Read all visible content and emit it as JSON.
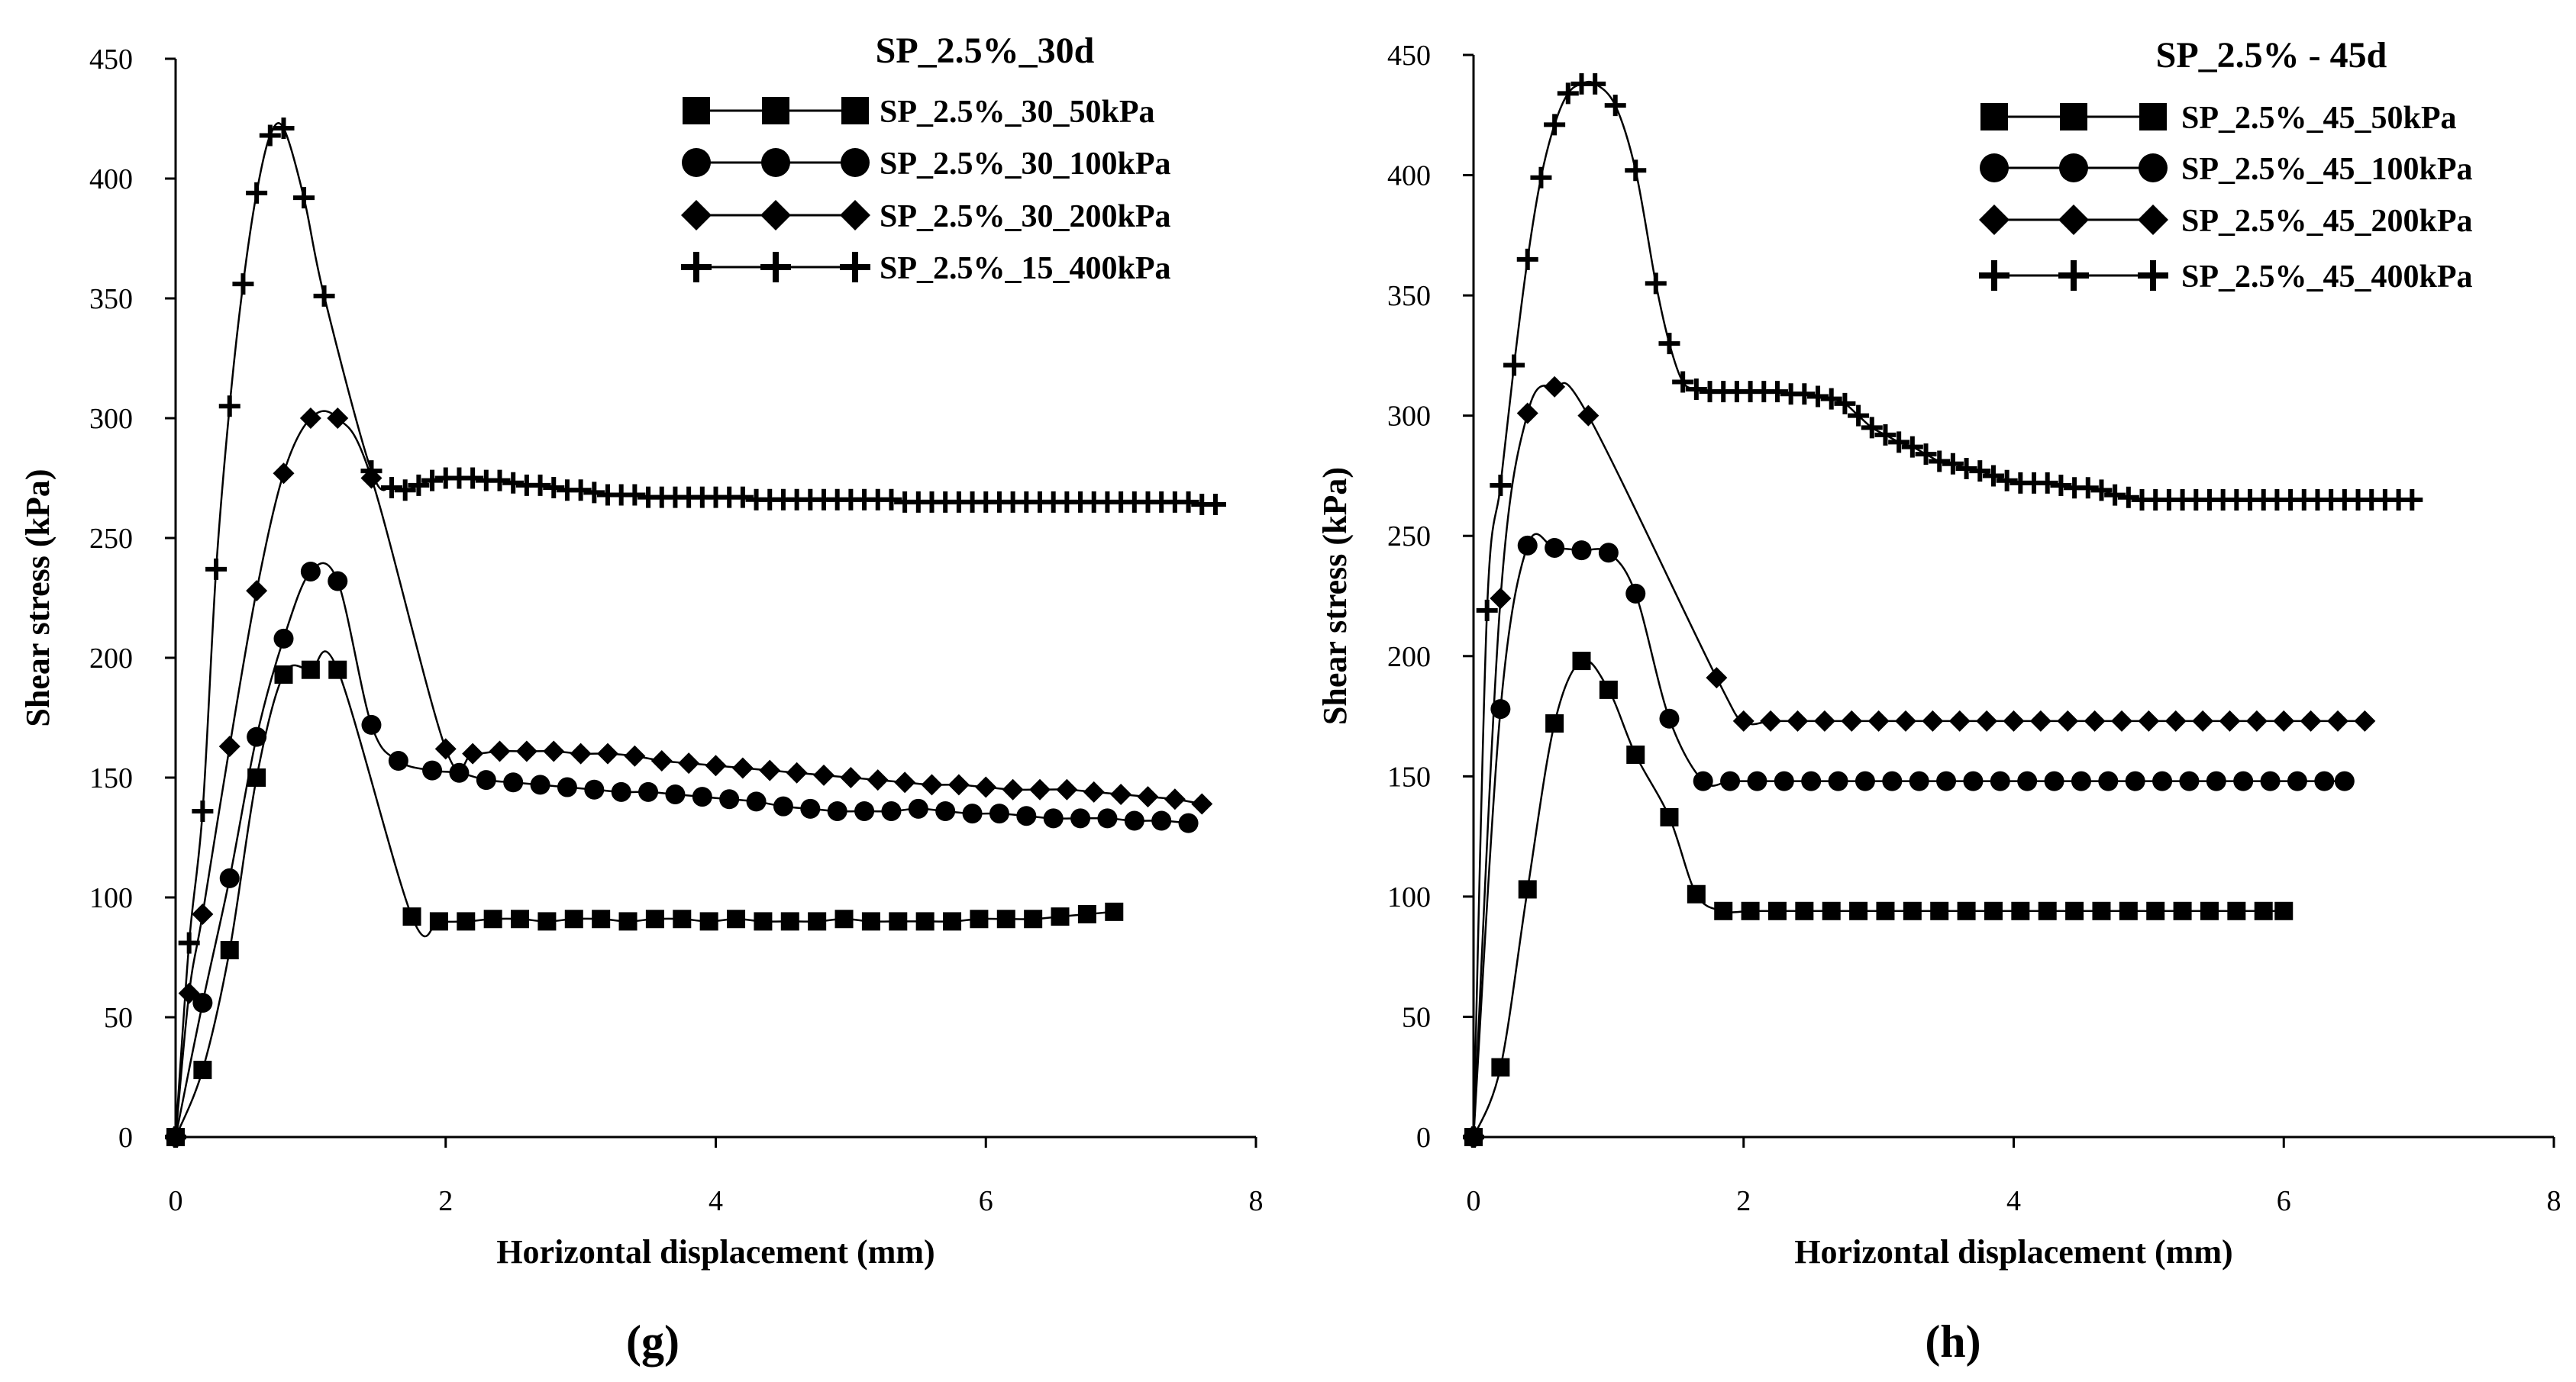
{
  "chart_data": [
    {
      "type": "line",
      "panel_label": "(g)",
      "title": "SP_2.5%_30d",
      "xlabel": "Horizontal displacement (mm)",
      "ylabel": "Shear stress (kPa)",
      "xlim": [
        0,
        8
      ],
      "ylim": [
        0,
        450
      ],
      "xticks": [
        0,
        2,
        4,
        6,
        8
      ],
      "yticks": [
        0,
        50,
        100,
        150,
        200,
        250,
        300,
        350,
        400,
        450
      ],
      "grid": false,
      "legend_position": "top-right",
      "series": [
        {
          "name": "SP_2.5%_30_50kPa",
          "marker": "square",
          "x": [
            0,
            0.2,
            0.4,
            0.6,
            0.8,
            1.0,
            1.2,
            1.75,
            1.95,
            2.15,
            2.35,
            2.55,
            2.75,
            2.95,
            3.15,
            3.35,
            3.55,
            3.75,
            3.95,
            4.15,
            4.35,
            4.55,
            4.75,
            4.95,
            5.15,
            5.35,
            5.55,
            5.75,
            5.95,
            6.15,
            6.35,
            6.55,
            6.75,
            6.95
          ],
          "y": [
            0,
            28,
            78,
            150,
            193,
            195,
            195,
            92,
            90,
            90,
            91,
            91,
            90,
            91,
            91,
            90,
            91,
            91,
            90,
            91,
            90,
            90,
            90,
            91,
            90,
            90,
            90,
            90,
            91,
            91,
            91,
            92,
            93,
            94
          ]
        },
        {
          "name": "SP_2.5%_30_100kPa",
          "marker": "circle",
          "x": [
            0,
            0.2,
            0.4,
            0.6,
            0.8,
            1.0,
            1.2,
            1.45,
            1.65,
            1.9,
            2.1,
            2.3,
            2.5,
            2.7,
            2.9,
            3.1,
            3.3,
            3.5,
            3.7,
            3.9,
            4.1,
            4.3,
            4.5,
            4.7,
            4.9,
            5.1,
            5.3,
            5.5,
            5.7,
            5.9,
            6.1,
            6.3,
            6.5,
            6.7,
            6.9,
            7.1,
            7.3,
            7.5
          ],
          "y": [
            0,
            56,
            108,
            167,
            208,
            236,
            232,
            172,
            157,
            153,
            152,
            149,
            148,
            147,
            146,
            145,
            144,
            144,
            143,
            142,
            141,
            140,
            138,
            137,
            136,
            136,
            136,
            137,
            136,
            135,
            135,
            134,
            133,
            133,
            133,
            132,
            132,
            131
          ]
        },
        {
          "name": "SP_2.5%_30_200kPa",
          "marker": "diamond",
          "x": [
            0,
            0.1,
            0.2,
            0.4,
            0.6,
            0.8,
            1.0,
            1.2,
            1.45,
            2.0,
            2.2,
            2.4,
            2.6,
            2.8,
            3.0,
            3.2,
            3.4,
            3.6,
            3.8,
            4.0,
            4.2,
            4.4,
            4.6,
            4.8,
            5.0,
            5.2,
            5.4,
            5.6,
            5.8,
            6.0,
            6.2,
            6.4,
            6.6,
            6.8,
            7.0,
            7.2,
            7.4,
            7.6
          ],
          "y": [
            0,
            60,
            93,
            163,
            228,
            277,
            300,
            300,
            275,
            162,
            160,
            161,
            161,
            161,
            160,
            160,
            159,
            157,
            156,
            155,
            154,
            153,
            152,
            151,
            150,
            149,
            148,
            147,
            147,
            146,
            145,
            145,
            145,
            144,
            143,
            142,
            141,
            139
          ]
        },
        {
          "name": "SP_2.5%_15_400kPa",
          "marker": "plus",
          "x": [
            0,
            0.1,
            0.2,
            0.3,
            0.4,
            0.5,
            0.6,
            0.7,
            0.8,
            0.95,
            1.1,
            1.45,
            1.6,
            1.7,
            1.8,
            1.9,
            2.0,
            2.1,
            2.2,
            2.3,
            2.4,
            2.5,
            2.6,
            2.7,
            2.8,
            2.9,
            3.0,
            3.1,
            3.2,
            3.3,
            3.4,
            3.5,
            3.6,
            3.7,
            3.8,
            3.9,
            4.0,
            4.1,
            4.2,
            4.3,
            4.4,
            4.5,
            4.6,
            4.7,
            4.8,
            4.9,
            5.0,
            5.1,
            5.2,
            5.3,
            5.4,
            5.5,
            5.6,
            5.7,
            5.8,
            5.9,
            6.0,
            6.1,
            6.2,
            6.3,
            6.4,
            6.5,
            6.6,
            6.7,
            6.8,
            6.9,
            7.0,
            7.1,
            7.2,
            7.3,
            7.4,
            7.5,
            7.6,
            7.7
          ],
          "y": [
            0,
            81,
            136,
            237,
            305,
            356,
            394,
            418,
            421,
            392,
            351,
            278,
            271,
            270,
            272,
            274,
            275,
            275,
            275,
            274,
            274,
            273,
            272,
            272,
            271,
            270,
            270,
            269,
            268,
            268,
            268,
            267,
            267,
            267,
            267,
            267,
            267,
            267,
            267,
            266,
            266,
            266,
            266,
            266,
            266,
            266,
            266,
            266,
            266,
            266,
            265,
            265,
            265,
            265,
            265,
            265,
            265,
            265,
            265,
            265,
            265,
            265,
            265,
            265,
            265,
            265,
            265,
            265,
            265,
            265,
            265,
            265,
            264,
            264
          ]
        }
      ]
    },
    {
      "type": "line",
      "panel_label": "(h)",
      "title": "SP_2.5% - 45d",
      "xlabel": "Horizontal displacement (mm)",
      "ylabel": "Shear stress (kPa)",
      "xlim": [
        0,
        8
      ],
      "ylim": [
        0,
        450
      ],
      "xticks": [
        0,
        2,
        4,
        6,
        8
      ],
      "yticks": [
        0,
        50,
        100,
        150,
        200,
        250,
        300,
        350,
        400,
        450
      ],
      "grid": false,
      "legend_position": "top-right",
      "series": [
        {
          "name": "SP_2.5%_45_50kPa",
          "marker": "square",
          "x": [
            0,
            0.2,
            0.4,
            0.6,
            0.8,
            1.0,
            1.2,
            1.45,
            1.65,
            1.85,
            2.05,
            2.25,
            2.45,
            2.65,
            2.85,
            3.05,
            3.25,
            3.45,
            3.65,
            3.85,
            4.05,
            4.25,
            4.45,
            4.65,
            4.85,
            5.05,
            5.25,
            5.45,
            5.65,
            5.85,
            6.0
          ],
          "y": [
            0,
            29,
            103,
            172,
            198,
            186,
            159,
            133,
            101,
            94,
            94,
            94,
            94,
            94,
            94,
            94,
            94,
            94,
            94,
            94,
            94,
            94,
            94,
            94,
            94,
            94,
            94,
            94,
            94,
            94,
            94
          ]
        },
        {
          "name": "SP_2.5%_45_100kPa",
          "marker": "circle",
          "x": [
            0,
            0.2,
            0.4,
            0.6,
            0.8,
            1.0,
            1.2,
            1.45,
            1.7,
            1.9,
            2.1,
            2.3,
            2.5,
            2.7,
            2.9,
            3.1,
            3.3,
            3.5,
            3.7,
            3.9,
            4.1,
            4.3,
            4.5,
            4.7,
            4.9,
            5.1,
            5.3,
            5.5,
            5.7,
            5.9,
            6.1,
            6.3,
            6.45
          ],
          "y": [
            0,
            178,
            246,
            245,
            244,
            243,
            226,
            174,
            148,
            148,
            148,
            148,
            148,
            148,
            148,
            148,
            148,
            148,
            148,
            148,
            148,
            148,
            148,
            148,
            148,
            148,
            148,
            148,
            148,
            148,
            148,
            148,
            148
          ]
        },
        {
          "name": "SP_2.5%_45_200kPa",
          "marker": "diamond",
          "x": [
            0,
            0.2,
            0.4,
            0.6,
            0.85,
            1.8,
            2.0,
            2.2,
            2.4,
            2.6,
            2.8,
            3.0,
            3.2,
            3.4,
            3.6,
            3.8,
            4.0,
            4.2,
            4.4,
            4.6,
            4.8,
            5.0,
            5.2,
            5.4,
            5.6,
            5.8,
            6.0,
            6.2,
            6.4,
            6.6
          ],
          "y": [
            0,
            224,
            301,
            312,
            300,
            191,
            173,
            173,
            173,
            173,
            173,
            173,
            173,
            173,
            173,
            173,
            173,
            173,
            173,
            173,
            173,
            173,
            173,
            173,
            173,
            173,
            173,
            173,
            173,
            173
          ]
        },
        {
          "name": "SP_2.5%_45_400kPa",
          "marker": "plus",
          "x": [
            0,
            0.1,
            0.2,
            0.3,
            0.4,
            0.5,
            0.6,
            0.7,
            0.8,
            0.9,
            1.05,
            1.2,
            1.35,
            1.45,
            1.55,
            1.65,
            1.75,
            1.85,
            1.95,
            2.05,
            2.15,
            2.25,
            2.35,
            2.45,
            2.55,
            2.65,
            2.75,
            2.85,
            2.95,
            3.05,
            3.15,
            3.25,
            3.35,
            3.45,
            3.55,
            3.65,
            3.75,
            3.85,
            3.95,
            4.05,
            4.15,
            4.25,
            4.35,
            4.45,
            4.55,
            4.65,
            4.75,
            4.85,
            4.95,
            5.05,
            5.15,
            5.25,
            5.35,
            5.45,
            5.55,
            5.65,
            5.75,
            5.85,
            5.95,
            6.05,
            6.15,
            6.25,
            6.35,
            6.45,
            6.55,
            6.65,
            6.75,
            6.85,
            6.95
          ],
          "y": [
            0,
            219,
            271,
            321,
            365,
            399,
            421,
            434,
            438,
            438,
            429,
            402,
            355,
            330,
            314,
            311,
            310,
            310,
            310,
            310,
            310,
            310,
            309,
            309,
            308,
            307,
            305,
            300,
            295,
            292,
            289,
            287,
            284,
            281,
            280,
            278,
            277,
            275,
            273,
            272,
            272,
            272,
            271,
            270,
            270,
            269,
            267,
            266,
            265,
            265,
            265,
            265,
            265,
            265,
            265,
            265,
            265,
            265,
            265,
            265,
            265,
            265,
            265,
            265,
            265,
            265,
            265,
            265,
            265
          ]
        }
      ]
    }
  ]
}
